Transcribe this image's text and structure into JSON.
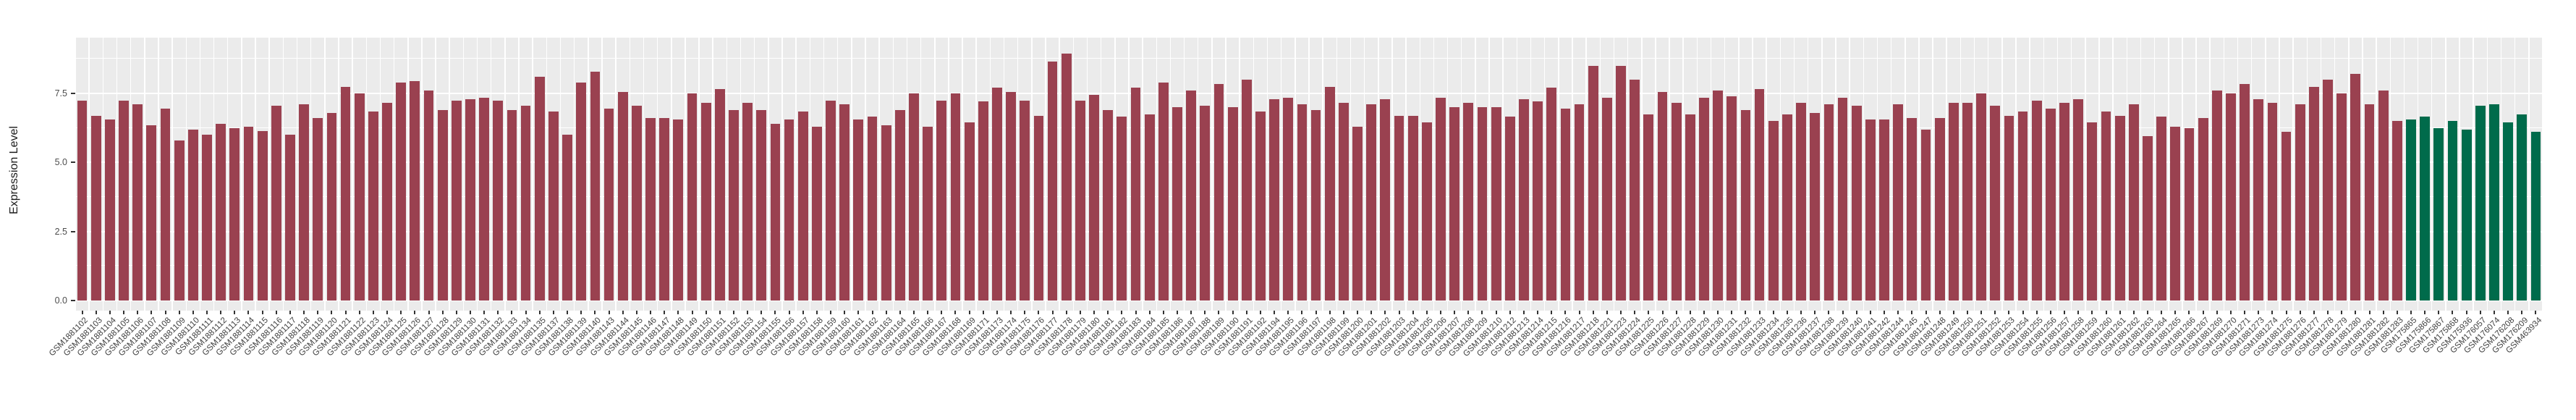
{
  "chart_data": {
    "type": "bar",
    "title": "",
    "ylabel": "Expression Level",
    "xlabel": "",
    "ylim": [
      0,
      9.52
    ],
    "yticks": [
      0.0,
      2.5,
      5.0,
      7.5
    ],
    "ytick_labels": [
      "0.0",
      "2.5",
      "5.0",
      "7.5"
    ],
    "minor_gridlines": [
      1.25,
      3.75,
      6.25,
      8.75
    ],
    "grid": "on",
    "legend_position": "none",
    "panel_bg": "#EBEBEB",
    "grid_color": "#FFFFFF",
    "tick_color": "#333333",
    "axis_text_color": "#404040",
    "axis_title_color": "#1A1A1A",
    "series": [
      {
        "name": "series-1",
        "color": "#9A4150",
        "categories": [
          "GSM1881102",
          "GSM1881103",
          "GSM1881104",
          "GSM1881105",
          "GSM1881106",
          "GSM1881107",
          "GSM1881108",
          "GSM1881109",
          "GSM1881110",
          "GSM1881111",
          "GSM1881112",
          "GSM1881113",
          "GSM1881114",
          "GSM1881115",
          "GSM1881116",
          "GSM1881117",
          "GSM1881118",
          "GSM1881119",
          "GSM1881120",
          "GSM1881121",
          "GSM1881122",
          "GSM1881123",
          "GSM1881124",
          "GSM1881125",
          "GSM1881126",
          "GSM1881127",
          "GSM1881128",
          "GSM1881129",
          "GSM1881130",
          "GSM1881131",
          "GSM1881132",
          "GSM1881133",
          "GSM1881134",
          "GSM1881135",
          "GSM1881137",
          "GSM1881138",
          "GSM1881139",
          "GSM1881140",
          "GSM1881143",
          "GSM1881144",
          "GSM1881145",
          "GSM1881146",
          "GSM1881147",
          "GSM1881148",
          "GSM1881149",
          "GSM1881150",
          "GSM1881151",
          "GSM1881152",
          "GSM1881153",
          "GSM1881154",
          "GSM1881155",
          "GSM1881156",
          "GSM1881157",
          "GSM1881158",
          "GSM1881159",
          "GSM1881160",
          "GSM1881161",
          "GSM1881162",
          "GSM1881163",
          "GSM1881164",
          "GSM1881165",
          "GSM1881166",
          "GSM1881167",
          "GSM1881168",
          "GSM1881169",
          "GSM1881171",
          "GSM1881173",
          "GSM1881174",
          "GSM1881175",
          "GSM1881176",
          "GSM1881177",
          "GSM1881178",
          "GSM1881179",
          "GSM1881180",
          "GSM1881181",
          "GSM1881182",
          "GSM1881183",
          "GSM1881184",
          "GSM1881185",
          "GSM1881186",
          "GSM1881187",
          "GSM1881188",
          "GSM1881189",
          "GSM1881190",
          "GSM1881191",
          "GSM1881192",
          "GSM1881194",
          "GSM1881195",
          "GSM1881196",
          "GSM1881197",
          "GSM1881198",
          "GSM1881199",
          "GSM1881200",
          "GSM1881201",
          "GSM1881202",
          "GSM1881203",
          "GSM1881204",
          "GSM1881205",
          "GSM1881206",
          "GSM1881207",
          "GSM1881208",
          "GSM1881209",
          "GSM1881210",
          "GSM1881212",
          "GSM1881213",
          "GSM1881214",
          "GSM1881215",
          "GSM1881216",
          "GSM1881217",
          "GSM1881218",
          "GSM1881221",
          "GSM1881223",
          "GSM1881224",
          "GSM1881225",
          "GSM1881226",
          "GSM1881227",
          "GSM1881228",
          "GSM1881229",
          "GSM1881230",
          "GSM1881231",
          "GSM1881232",
          "GSM1881233",
          "GSM1881234",
          "GSM1881235",
          "GSM1881236",
          "GSM1881237",
          "GSM1881238",
          "GSM1881239",
          "GSM1881240",
          "GSM1881241",
          "GSM1881242",
          "GSM1881244",
          "GSM1881245",
          "GSM1881247",
          "GSM1881248",
          "GSM1881249",
          "GSM1881250",
          "GSM1881251",
          "GSM1881252",
          "GSM1881253",
          "GSM1881254",
          "GSM1881255",
          "GSM1881256",
          "GSM1881257",
          "GSM1881258",
          "GSM1881259",
          "GSM1881260",
          "GSM1881261",
          "GSM1881262",
          "GSM1881263",
          "GSM1881264",
          "GSM1881265",
          "GSM1881266",
          "GSM1881267",
          "GSM1881269",
          "GSM1881270",
          "GSM1881271",
          "GSM1881273",
          "GSM1881274",
          "GSM1881275",
          "GSM1881276",
          "GSM1881277",
          "GSM1881278",
          "GSM1881279",
          "GSM1881280",
          "GSM1881281",
          "GSM1881282",
          "GSM1881283"
        ],
        "values": [
          7.25,
          6.7,
          6.55,
          7.25,
          7.1,
          6.35,
          6.95,
          5.8,
          6.2,
          6.0,
          6.4,
          6.25,
          6.3,
          6.15,
          7.05,
          6.0,
          7.1,
          6.6,
          6.8,
          7.75,
          7.5,
          6.85,
          7.15,
          7.9,
          7.95,
          7.6,
          6.9,
          7.25,
          7.3,
          7.35,
          7.25,
          6.9,
          7.05,
          8.1,
          6.85,
          6.0,
          7.9,
          8.3,
          6.95,
          7.55,
          7.05,
          6.6,
          6.6,
          6.55,
          7.5,
          7.15,
          7.65,
          6.9,
          7.15,
          6.9,
          6.4,
          6.55,
          6.85,
          6.3,
          7.25,
          7.1,
          6.55,
          6.65,
          6.35,
          6.9,
          7.5,
          6.3,
          7.25,
          7.5,
          6.45,
          7.2,
          7.7,
          7.55,
          7.25,
          6.7,
          8.65,
          8.95,
          7.25,
          7.45,
          6.9,
          6.65,
          7.7,
          6.75,
          7.9,
          7.0,
          7.6,
          7.05,
          7.85,
          7.0,
          8.0,
          6.85,
          7.3,
          7.35,
          7.1,
          6.9,
          7.75,
          7.15,
          6.3,
          7.1,
          7.3,
          6.7,
          6.7,
          6.45,
          7.35,
          7.0,
          7.15,
          7.0,
          7.0,
          6.65,
          7.3,
          7.2,
          7.7,
          6.95,
          7.1,
          8.5,
          7.35,
          8.5,
          8.0,
          6.75,
          7.55,
          7.15,
          6.75,
          7.35,
          7.6,
          7.4,
          6.9,
          7.65,
          6.5,
          6.75,
          7.15,
          6.8,
          7.1,
          7.35,
          7.05,
          6.55,
          6.55,
          7.1,
          6.6,
          6.2,
          6.6,
          7.15,
          7.15,
          7.5,
          7.05,
          6.7,
          6.85,
          7.25,
          6.95,
          7.15,
          7.3,
          6.45,
          6.85,
          6.7,
          7.1,
          5.95,
          6.65,
          6.3,
          6.25,
          6.6,
          7.6,
          7.5,
          7.85,
          7.3,
          7.15,
          6.1,
          7.1,
          7.75,
          8.0,
          7.5,
          8.2,
          7.1,
          7.6,
          6.5
        ]
      },
      {
        "name": "series-2",
        "color": "#006B4B",
        "categories": [
          "GSM175865",
          "GSM175866",
          "GSM175867",
          "GSM175868",
          "GSM175936",
          "GSM176057",
          "GSM176074",
          "GSM176208",
          "GSM176209",
          "GSM463934"
        ],
        "values": [
          6.55,
          6.65,
          6.25,
          6.5,
          6.2,
          7.05,
          7.1,
          6.45,
          6.75,
          6.1
        ]
      }
    ]
  }
}
